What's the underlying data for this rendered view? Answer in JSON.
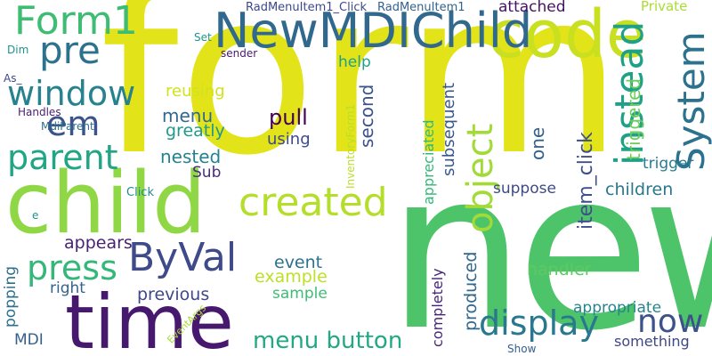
{
  "words": [
    {
      "text": "form",
      "color": "#e2e419"
    },
    {
      "text": "new",
      "color": "#4ec46a"
    },
    {
      "text": "child",
      "color": "#8fd744"
    },
    {
      "text": "time",
      "color": "#46186e"
    },
    {
      "text": "code",
      "color": "#c9e020"
    },
    {
      "text": "NewMDIChild",
      "color": "#31688e"
    },
    {
      "text": "Form1",
      "color": "#3dbc74"
    },
    {
      "text": "window",
      "color": "#26828e"
    },
    {
      "text": "parent",
      "color": "#21a685"
    },
    {
      "text": "pre",
      "color": "#2d718e"
    },
    {
      "text": "em",
      "color": "#3b528b"
    },
    {
      "text": "created",
      "color": "#b5de2b"
    },
    {
      "text": "ByVal",
      "color": "#3e4a89"
    },
    {
      "text": "press",
      "color": "#35b779"
    },
    {
      "text": "instead",
      "color": "#1fa187"
    },
    {
      "text": "System",
      "color": "#2c728e"
    },
    {
      "text": "object",
      "color": "#a2da37"
    },
    {
      "text": "display",
      "color": "#2a788e"
    },
    {
      "text": "now",
      "color": "#3b528b"
    },
    {
      "text": "menu button",
      "color": "#22a884"
    },
    {
      "text": "RadMenuItem1_Click",
      "color": "#3e4989"
    },
    {
      "text": "RadMenuItem1",
      "color": "#33638d"
    },
    {
      "text": "attached",
      "color": "#471164"
    },
    {
      "text": "Private",
      "color": "#aadc32"
    },
    {
      "text": "help",
      "color": "#1fa187"
    },
    {
      "text": "reusing",
      "color": "#d2e21b"
    },
    {
      "text": "pull",
      "color": "#440154"
    },
    {
      "text": "menu",
      "color": "#31688e"
    },
    {
      "text": "greatly",
      "color": "#1f9a8a"
    },
    {
      "text": "using",
      "color": "#3e4a89"
    },
    {
      "text": "nested",
      "color": "#26828e"
    },
    {
      "text": "Sub",
      "color": "#472d7b"
    },
    {
      "text": "second",
      "color": "#3b528b"
    },
    {
      "text": "subsequent",
      "color": "#38598c"
    },
    {
      "text": "appreciated",
      "color": "#35b779"
    },
    {
      "text": "one",
      "color": "#355f8d"
    },
    {
      "text": "item_click",
      "color": "#3d4e8a"
    },
    {
      "text": "triggered",
      "color": "#6ccd5a"
    },
    {
      "text": "trigger",
      "color": "#287c8e"
    },
    {
      "text": "children",
      "color": "#2a788e"
    },
    {
      "text": "suppose",
      "color": "#3e4989"
    },
    {
      "text": "appears",
      "color": "#482374"
    },
    {
      "text": "event",
      "color": "#2c728e"
    },
    {
      "text": "example",
      "color": "#bddf26"
    },
    {
      "text": "handler",
      "color": "#5ec962"
    },
    {
      "text": "right",
      "color": "#33638d"
    },
    {
      "text": "previous",
      "color": "#3f4889"
    },
    {
      "text": "sample",
      "color": "#3dbc74"
    },
    {
      "text": "popping",
      "color": "#2d708e"
    },
    {
      "text": "completely",
      "color": "#482576"
    },
    {
      "text": "produced",
      "color": "#31688e"
    },
    {
      "text": "appropriate",
      "color": "#25848e"
    },
    {
      "text": "something",
      "color": "#3f4788"
    },
    {
      "text": "MDI",
      "color": "#355f8d"
    },
    {
      "text": "Show",
      "color": "#35608d"
    },
    {
      "text": "sender",
      "color": "#481a6c"
    },
    {
      "text": "Set",
      "color": "#1f948c"
    },
    {
      "text": "Dim",
      "color": "#20928c"
    },
    {
      "text": "As_",
      "color": "#3e4a89"
    },
    {
      "text": "Handles",
      "color": "#481f70"
    },
    {
      "text": "MdiParent",
      "color": "#2d708e"
    },
    {
      "text": "InventoryForm1",
      "color": "#bade28"
    },
    {
      "text": "Click",
      "color": "#23898e"
    },
    {
      "text": "EventArgs",
      "color": "#a8db34"
    },
    {
      "text": "e",
      "color": "#20928c"
    }
  ]
}
